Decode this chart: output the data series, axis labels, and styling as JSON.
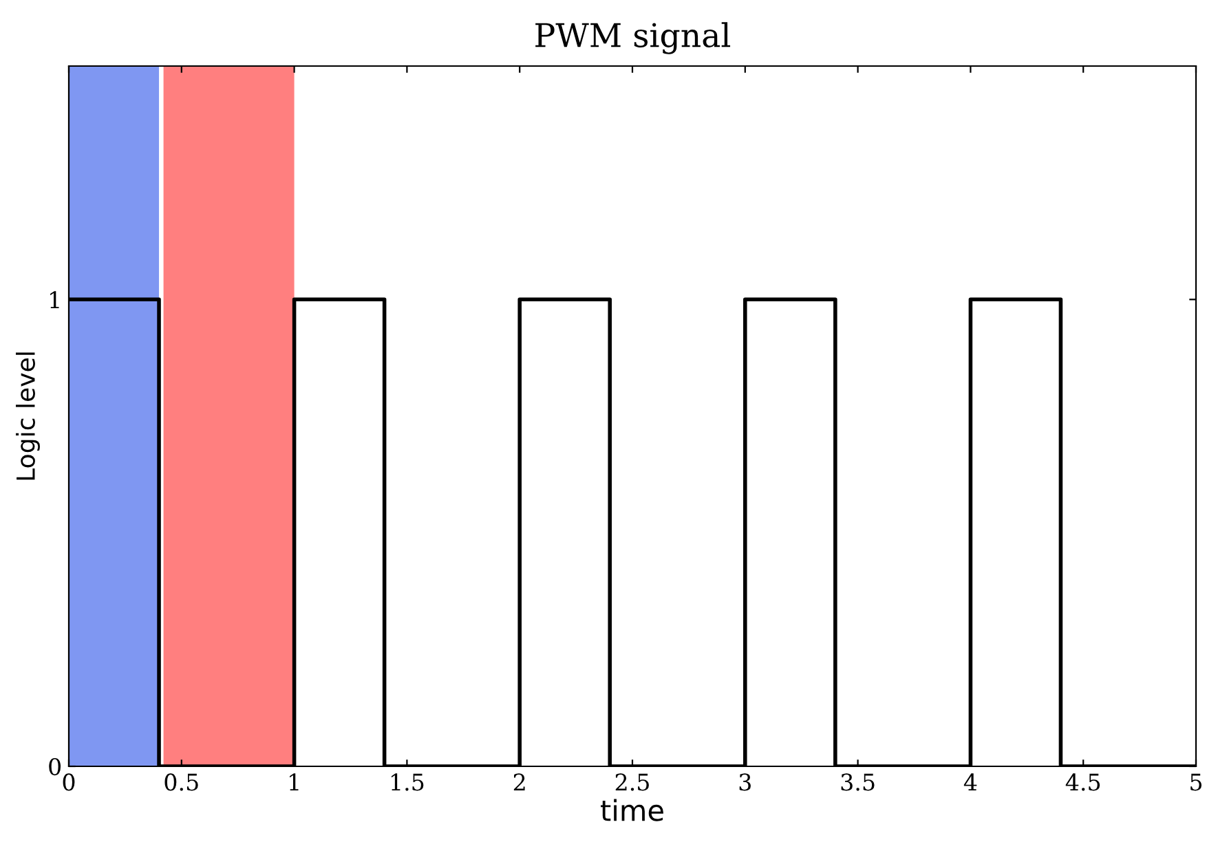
{
  "chart_data": {
    "type": "step",
    "title": "PWM signal",
    "xlabel": "time",
    "ylabel": "Logic level",
    "x": [
      0,
      0.4,
      1,
      1.4,
      2,
      2.4,
      3,
      3.4,
      4,
      4.4,
      5
    ],
    "series": [
      {
        "color": "#000000",
        "values": [
          1,
          0,
          1,
          0,
          1,
          0,
          1,
          0,
          1,
          0,
          0
        ]
      }
    ],
    "xlim": [
      0,
      5
    ],
    "ylim": [
      0,
      1.5
    ],
    "xticks": [
      0,
      0.5,
      1,
      1.5,
      2,
      2.5,
      3,
      3.5,
      4,
      4.5,
      5
    ],
    "yticks": [
      0,
      1
    ],
    "bands": [
      {
        "axis": "x",
        "from": 0,
        "to": 0.4,
        "color": "#7f97f2"
      },
      {
        "axis": "x",
        "from": 0.42,
        "to": 1,
        "color": "#ff7f7f"
      }
    ],
    "grid": false,
    "legend": false
  }
}
